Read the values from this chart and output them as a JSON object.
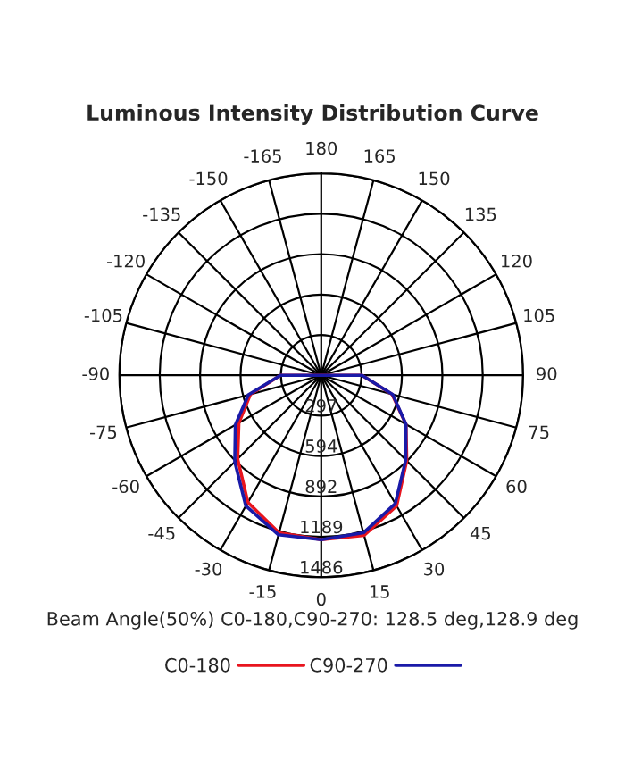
{
  "chart_data": {
    "type": "radar",
    "title": "Luminous Intensity Distribution Curve",
    "categories": [
      "180",
      "165",
      "150",
      "135",
      "120",
      "105",
      "90",
      "75",
      "60",
      "45",
      "30",
      "15",
      "0",
      "-15",
      "-30",
      "-45",
      "-60",
      "-75",
      "-90",
      "-105",
      "-120",
      "-135",
      "-150",
      "-165"
    ],
    "series": [
      {
        "name": "C0-180",
        "color": "#e8141e",
        "values": [
          0,
          0,
          0,
          0,
          0,
          0,
          300,
          540,
          720,
          890,
          1110,
          1220,
          1210,
          1200,
          1080,
          870,
          700,
          540,
          300,
          0,
          0,
          0,
          0,
          0
        ]
      },
      {
        "name": "C90-270",
        "color": "#1a1aa8",
        "values": [
          0,
          0,
          0,
          0,
          0,
          0,
          300,
          545,
          720,
          880,
          1090,
          1200,
          1210,
          1215,
          1110,
          900,
          730,
          555,
          300,
          0,
          0,
          0,
          0,
          0
        ]
      }
    ],
    "ylim": [
      0,
      1486
    ],
    "yticks": [
      297,
      594,
      892,
      1189,
      1486
    ],
    "grid": true,
    "legend": "bottom",
    "annotations": [
      "Beam Angle(50%) C0-180,C90-270: 128.5 deg,128.9 deg"
    ]
  }
}
